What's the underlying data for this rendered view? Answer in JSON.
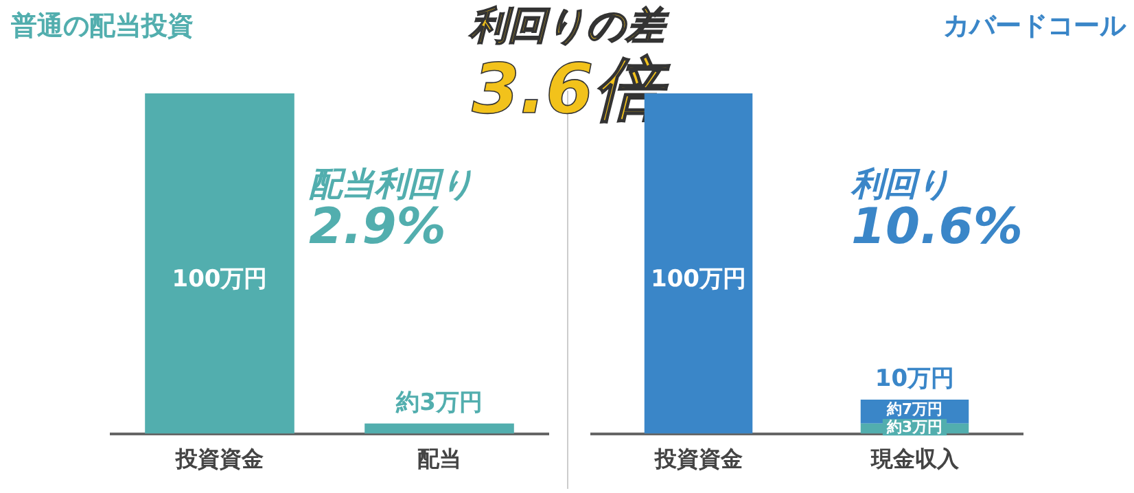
{
  "chart_data": [
    {
      "type": "bar",
      "title": "普通の配当投資",
      "categories": [
        "投資資金",
        "配当"
      ],
      "values": [
        100,
        3
      ],
      "color": "#52aeae",
      "value_labels": [
        "100万円",
        "約3万円"
      ],
      "annotations": [
        "配当利回り",
        "2.9%"
      ],
      "grid": false,
      "legend": false
    },
    {
      "type": "other",
      "title": "利回りの差",
      "annotations": [
        "3.6倍"
      ]
    },
    {
      "type": "bar",
      "title": "カバードコール",
      "categories": [
        "投資資金",
        "現金収入"
      ],
      "stacked": true,
      "series": [
        {
          "color": "#52aeae",
          "values": [
            null,
            3
          ],
          "value_labels": [
            null,
            "約3万円"
          ]
        },
        {
          "color": "#3a86c8",
          "values": [
            100,
            7
          ],
          "value_labels": [
            "100万円",
            "約7万円"
          ]
        }
      ],
      "totals": [
        null,
        "10万円"
      ],
      "annotations": [
        "利回り",
        "10.6%"
      ],
      "grid": false,
      "legend": false
    }
  ]
}
